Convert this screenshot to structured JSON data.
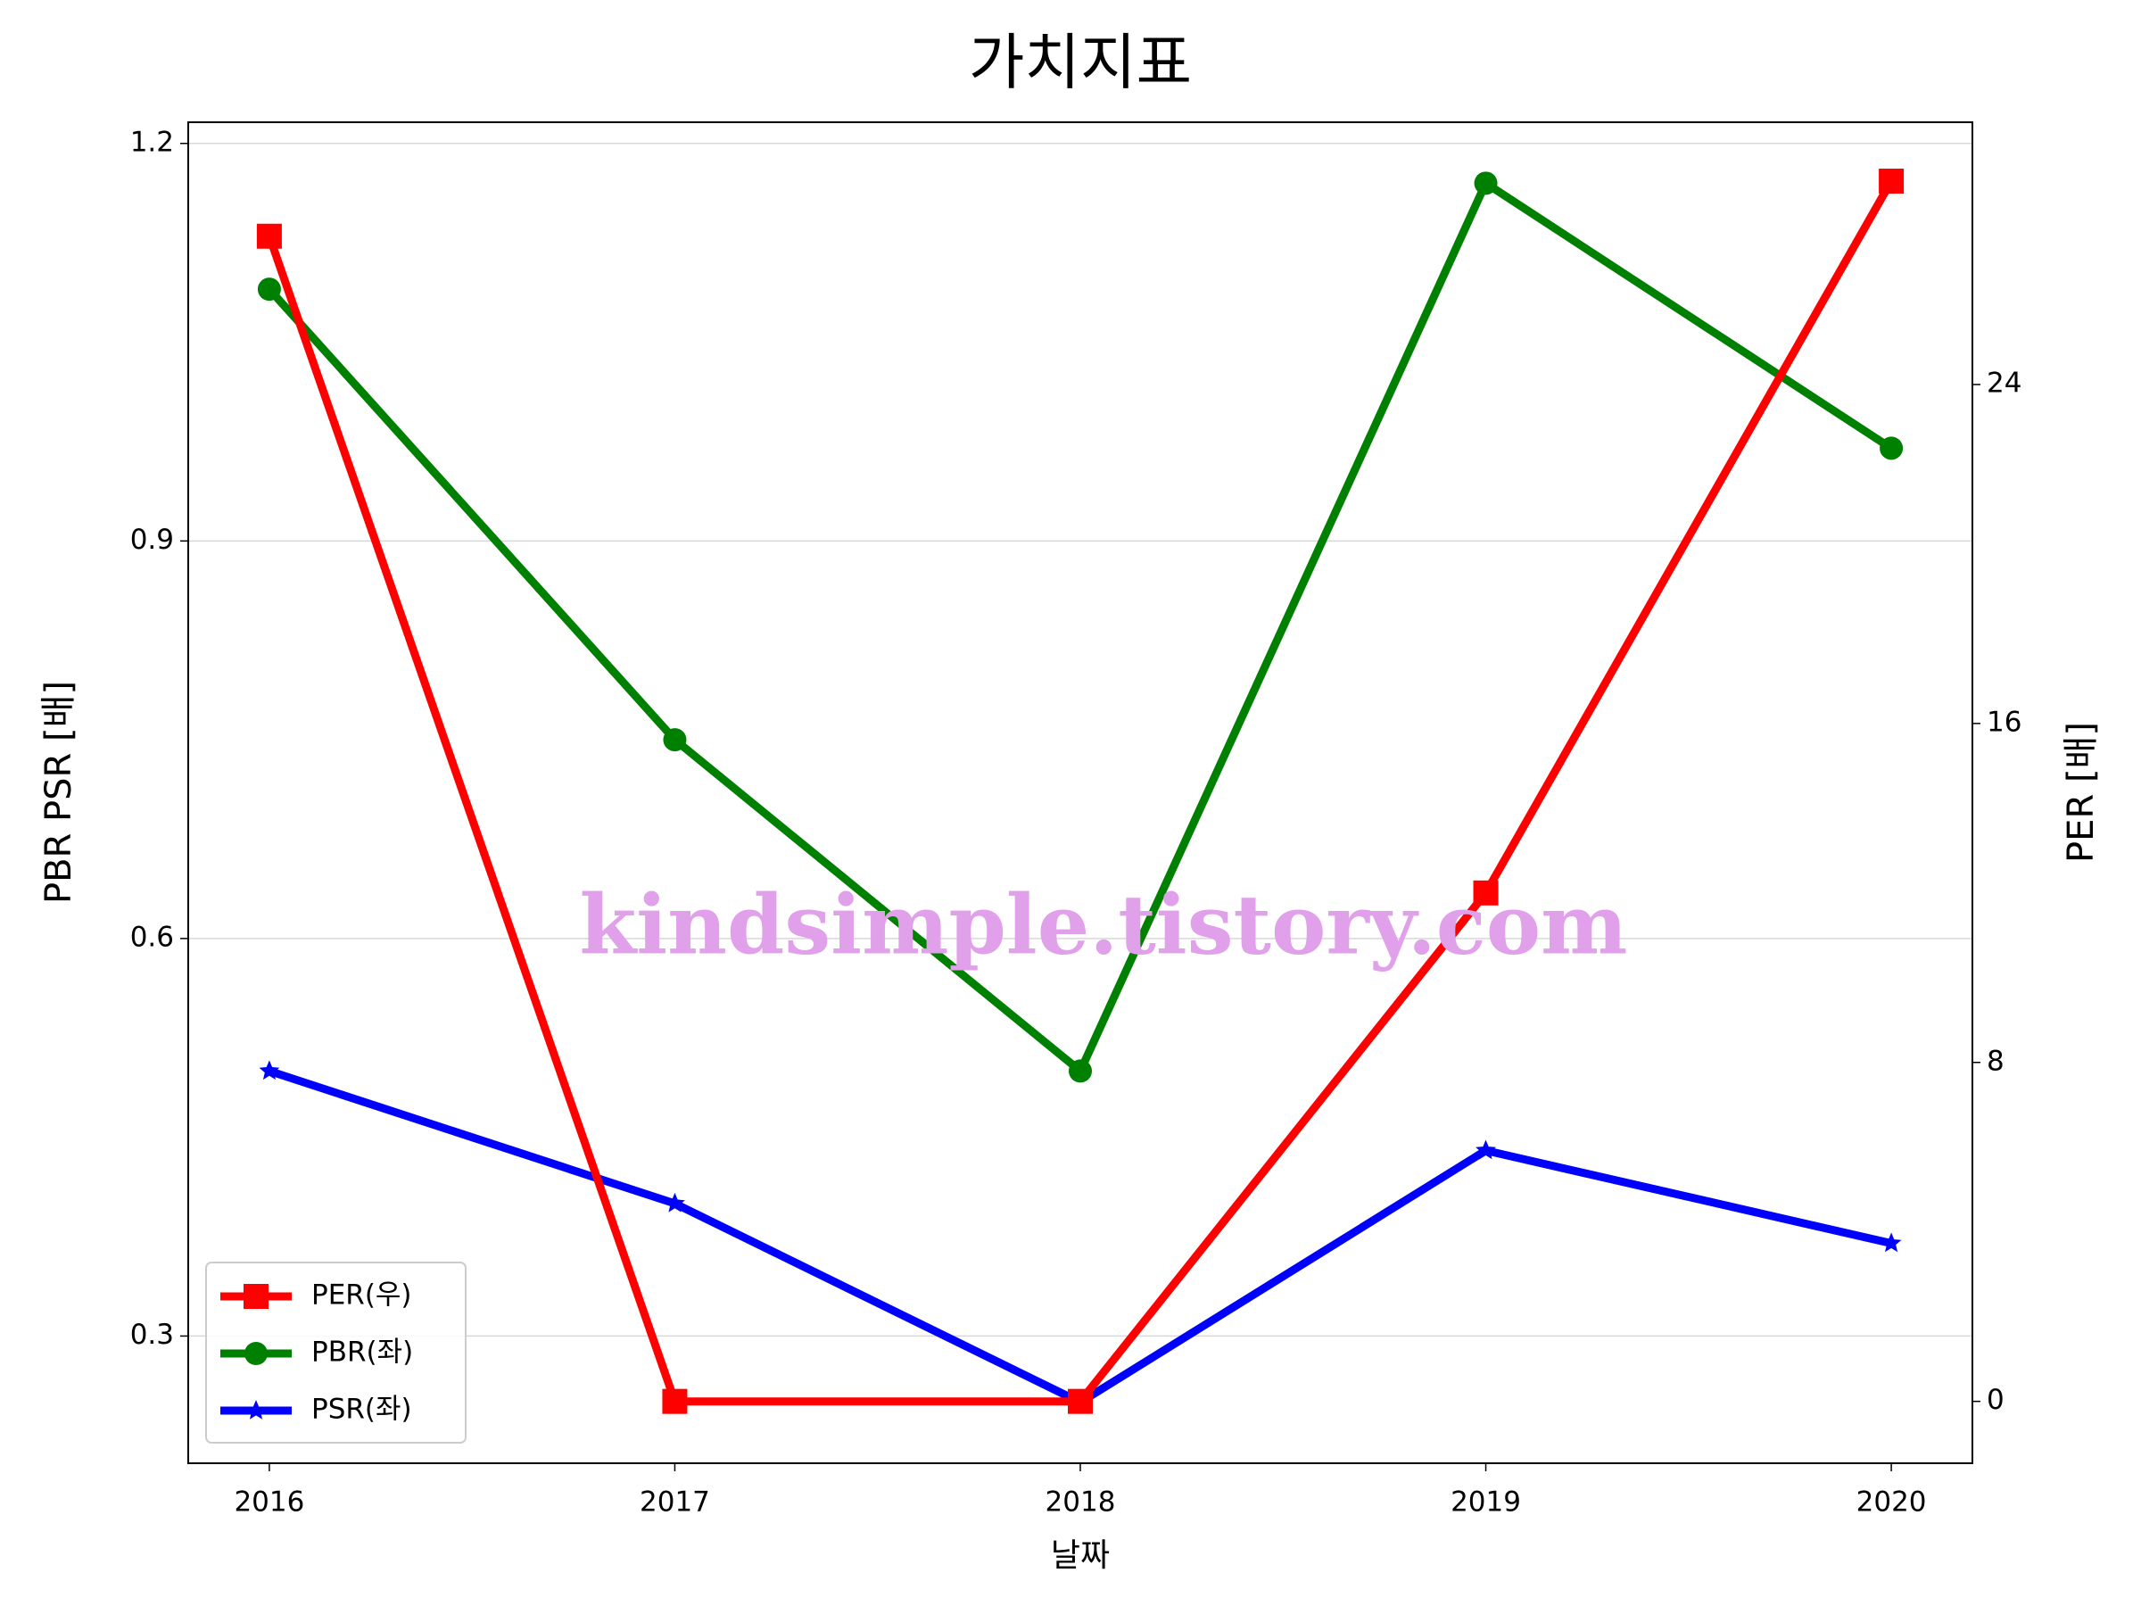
{
  "chart_data": {
    "type": "line",
    "title": "가치지표",
    "x_label": "날짜",
    "y_label": "PBR PSR [배]",
    "y_label_color": "#008000",
    "y2_label": "PER [배]",
    "y2_label_color": "#ff0000",
    "watermark": "kindsimple.tistory.com",
    "x": [
      2016,
      2017,
      2018,
      2019,
      2020
    ],
    "xlim": [
      2015.8,
      2020.2
    ],
    "xticks": [
      2016,
      2017,
      2018,
      2019,
      2020
    ],
    "ylim": [
      0.204,
      1.216
    ],
    "yticks": [
      0.3,
      0.6,
      0.9,
      1.2
    ],
    "y2lim": [
      -1.46,
      30.19
    ],
    "y2ticks": [
      0,
      8,
      16,
      24
    ],
    "grid": true,
    "legend_position": "lower left",
    "series": [
      {
        "name": "PER(우)",
        "color": "#ff0000",
        "marker": "square",
        "axis": "y2",
        "values": [
          27.5,
          0,
          0,
          12,
          28.8
        ]
      },
      {
        "name": "PBR(좌)",
        "color": "#008000",
        "marker": "circle",
        "values": [
          1.09,
          0.75,
          0.5,
          1.17,
          0.97
        ]
      },
      {
        "name": "PSR(좌)",
        "color": "#0000ff",
        "marker": "star",
        "values": [
          0.5,
          0.4,
          0.25,
          0.44,
          0.37
        ]
      }
    ]
  }
}
